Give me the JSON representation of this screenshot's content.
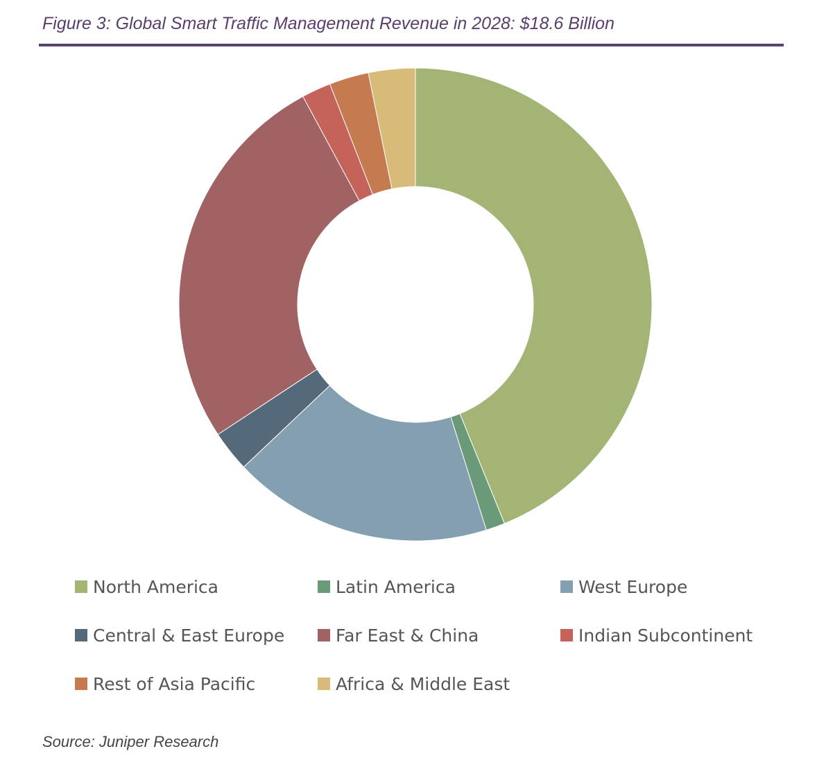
{
  "title": "Figure 3: Global Smart Traffic Management Revenue in 2028:  $18.6 Billion",
  "source": "Source: Juniper Research",
  "chart_data": {
    "type": "pie",
    "variant": "donut",
    "title": "Figure 3: Global Smart Traffic Management Revenue in 2028:  $18.6 Billion",
    "unit": "share of revenue (%)",
    "legend_position": "bottom",
    "categories": [
      "North America",
      "Latin America",
      "West Europe",
      "Central & East Europe",
      "Far East & China",
      "Indian Subcontinent",
      "Rest of Asia Pacific",
      "Africa & Middle East"
    ],
    "values": [
      43.9,
      1.3,
      17.8,
      2.8,
      26.4,
      2.0,
      2.7,
      3.2
    ],
    "colors": [
      "#a3b475",
      "#6a9a78",
      "#839fb0",
      "#546a7b",
      "#a06262",
      "#c5635a",
      "#c67a50",
      "#d9bb79"
    ]
  }
}
